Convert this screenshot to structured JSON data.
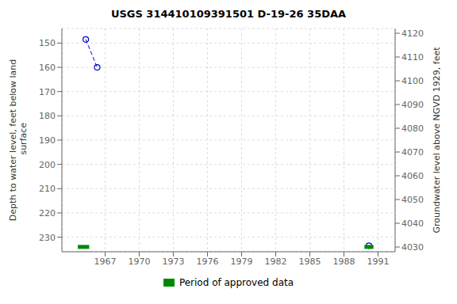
{
  "chart_data": {
    "type": "scatter",
    "title": "USGS 314410109391501 D-19-26 35DAA",
    "y_label": "Depth to water level, feet below land\n surface",
    "y2_label": "Groundwater level above NGVD 1929, feet",
    "series": [
      {
        "type": "line",
        "x": [
          1965.3,
          1966.3
        ],
        "values": [
          148.5,
          160.0
        ],
        "color": "#0000cc",
        "marker": "circle",
        "line_style": "dashed"
      },
      {
        "type": "scatter",
        "x": [
          1990.2
        ],
        "values": [
          233.5
        ],
        "color": "#0000cc",
        "marker": "circle"
      },
      {
        "type": "range",
        "name": "Period of approved data",
        "color": "#008800",
        "x_start": [
          1964.6,
          1989.8
        ],
        "x_end": [
          1965.6,
          1990.6
        ],
        "values": [
          234.0,
          234.0
        ]
      }
    ],
    "xlim": [
      1963.2,
      1992.5
    ],
    "xticks": [
      1967,
      1970,
      1973,
      1976,
      1979,
      1982,
      1985,
      1988,
      1991
    ],
    "ylim": [
      236.0,
      144.0
    ],
    "yticks": [
      150,
      160,
      170,
      180,
      190,
      200,
      210,
      220,
      230
    ],
    "y2lim": [
      4028,
      4122
    ],
    "y2ticks": [
      4030,
      4040,
      4050,
      4060,
      4070,
      4080,
      4090,
      4100,
      4110,
      4120
    ],
    "grid": true,
    "legend": "bottom"
  }
}
